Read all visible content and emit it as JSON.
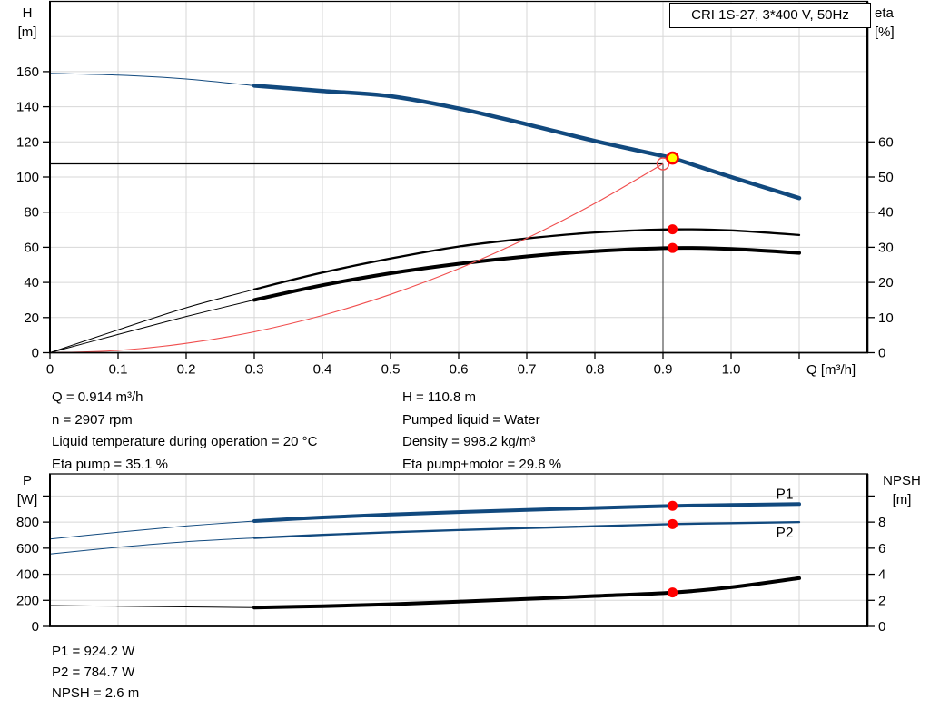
{
  "title_box": {
    "label": "CRI 1S-27, 3*400 V, 50Hz"
  },
  "colors": {
    "blue": "#11497e",
    "black": "#000000",
    "red": "#ff0000",
    "light_red": "#f04e4e",
    "yellow": "#ffff00",
    "grid": "#d7d7d7"
  },
  "axes": {
    "top_left_1": "H",
    "top_left_2": "[m]",
    "top_right_1": "eta",
    "top_right_2": "[%]",
    "x_label": "Q [m³/h]",
    "bot_left_1": "P",
    "bot_left_2": "[W]",
    "bot_right_1": "NPSH",
    "bot_right_2": "[m]"
  },
  "info": {
    "q": "Q = 0.914 m³/h",
    "n": "n = 2907 rpm",
    "temp": "Liquid temperature during operation = 20 °C",
    "eta_pump": "Eta pump = 35.1 %",
    "h": "H = 110.8 m",
    "liquid": "Pumped liquid = Water",
    "density": "Density = 998.2 kg/m³",
    "eta_pm": "Eta pump+motor = 29.8 %",
    "p1": "P1 = 924.2 W",
    "p2": "P2 = 784.7 W",
    "npsh": "NPSH = 2.6 m"
  },
  "chart_data": [
    {
      "type": "line",
      "title": "CRI 1S-27, 3*400 V, 50Hz",
      "x_axis": {
        "label": "Q [m³/h]",
        "min": 0,
        "max": 1.2,
        "grid_step": 0.1,
        "ticks": [
          {
            "v": 0,
            "t": "0"
          },
          {
            "v": 0.1,
            "t": "0.1"
          },
          {
            "v": 0.2,
            "t": "0.2"
          },
          {
            "v": 0.3,
            "t": "0.3"
          },
          {
            "v": 0.4,
            "t": "0.4"
          },
          {
            "v": 0.5,
            "t": "0.5"
          },
          {
            "v": 0.6,
            "t": "0.6"
          },
          {
            "v": 0.7,
            "t": "0.7"
          },
          {
            "v": 0.8,
            "t": "0.8"
          },
          {
            "v": 0.9,
            "t": "0.9"
          },
          {
            "v": 1.0,
            "t": "1.0"
          },
          {
            "v": 1.1,
            "t": ""
          }
        ]
      },
      "y_left": {
        "label": "H [m]",
        "min": 0,
        "max": 200,
        "grid_step": 20,
        "ticks": [
          {
            "v": 0,
            "t": "0"
          },
          {
            "v": 20,
            "t": "20"
          },
          {
            "v": 40,
            "t": "40"
          },
          {
            "v": 60,
            "t": "60"
          },
          {
            "v": 80,
            "t": "80"
          },
          {
            "v": 100,
            "t": "100"
          },
          {
            "v": 120,
            "t": "120"
          },
          {
            "v": 140,
            "t": "140"
          },
          {
            "v": 160,
            "t": "160"
          }
        ]
      },
      "y_right": {
        "label": "eta [%]",
        "min": 0,
        "max": 100,
        "ticks": [
          {
            "v": 0,
            "t": "0"
          },
          {
            "v": 10,
            "t": "10"
          },
          {
            "v": 20,
            "t": "20"
          },
          {
            "v": 30,
            "t": "30"
          },
          {
            "v": 40,
            "t": "40"
          },
          {
            "v": 50,
            "t": "50"
          },
          {
            "v": 60,
            "t": "60"
          }
        ]
      },
      "series": [
        {
          "name": "H pump curve",
          "axis": "left",
          "color": "blue",
          "thin_width": 1,
          "width": 4.5,
          "thick_from": 0.3,
          "points": [
            [
              0,
              159
            ],
            [
              0.1,
              158
            ],
            [
              0.2,
              155.8
            ],
            [
              0.3,
              152
            ],
            [
              0.4,
              149
            ],
            [
              0.5,
              146
            ],
            [
              0.6,
              139
            ],
            [
              0.7,
              130
            ],
            [
              0.8,
              120.5
            ],
            [
              0.9,
              112
            ],
            [
              0.914,
              110.8
            ],
            [
              1.0,
              100
            ],
            [
              1.1,
              88
            ]
          ]
        },
        {
          "name": "Eta pump",
          "axis": "right",
          "color": "black",
          "thin_width": 1,
          "width": 2.3,
          "thick_from": 0.3,
          "points": [
            [
              0,
              0
            ],
            [
              0.1,
              6.5
            ],
            [
              0.2,
              12.8
            ],
            [
              0.3,
              18
            ],
            [
              0.4,
              22.8
            ],
            [
              0.5,
              26.8
            ],
            [
              0.6,
              30.2
            ],
            [
              0.7,
              32.5
            ],
            [
              0.8,
              34.2
            ],
            [
              0.914,
              35.1
            ],
            [
              1.0,
              34.8
            ],
            [
              1.1,
              33.5
            ]
          ]
        },
        {
          "name": "Eta pump plus motor",
          "axis": "right",
          "color": "black",
          "thin_width": 1,
          "width": 4,
          "thick_from": 0.3,
          "points": [
            [
              0,
              0
            ],
            [
              0.1,
              5.2
            ],
            [
              0.2,
              10.3
            ],
            [
              0.3,
              15
            ],
            [
              0.4,
              19.2
            ],
            [
              0.5,
              22.6
            ],
            [
              0.6,
              25.3
            ],
            [
              0.7,
              27.4
            ],
            [
              0.8,
              28.9
            ],
            [
              0.914,
              29.8
            ],
            [
              1.0,
              29.5
            ],
            [
              1.1,
              28.4
            ]
          ]
        },
        {
          "name": "System curve",
          "axis": "left",
          "color": "light_red",
          "thin_width": 1.1,
          "width": 1.1,
          "thick_from": null,
          "points": [
            [
              0,
              0
            ],
            [
              0.1,
              1.3
            ],
            [
              0.2,
              5.3
            ],
            [
              0.3,
              11.9
            ],
            [
              0.4,
              21.2
            ],
            [
              0.5,
              33.2
            ],
            [
              0.6,
              47.8
            ],
            [
              0.7,
              65.1
            ],
            [
              0.8,
              85
            ],
            [
              0.9,
              107.5
            ]
          ]
        }
      ],
      "guides": {
        "h_line": {
          "value": 107.5,
          "to_q": 0.9
        },
        "v_line": {
          "q": 0.9,
          "from_value": 107.5
        }
      },
      "markers": [
        {
          "style": "open-red",
          "axis": "left",
          "q": 0.9,
          "value": 107.5
        },
        {
          "style": "yellow-dot",
          "axis": "left",
          "q": 0.914,
          "value": 110.8
        },
        {
          "style": "red-dot",
          "axis": "right",
          "q": 0.914,
          "value": 35.1
        },
        {
          "style": "red-dot",
          "axis": "right",
          "q": 0.914,
          "value": 29.8
        }
      ],
      "annotations": []
    },
    {
      "type": "line",
      "title": "",
      "x_axis": {
        "label": "",
        "min": 0,
        "max": 1.2,
        "grid_step": 0.1,
        "ticks": []
      },
      "y_left": {
        "label": "P [W]",
        "min": 0,
        "max": 1170,
        "grid_step": 200,
        "ticks": [
          {
            "v": 0,
            "t": "0"
          },
          {
            "v": 200,
            "t": "200"
          },
          {
            "v": 400,
            "t": "400"
          },
          {
            "v": 600,
            "t": "600"
          },
          {
            "v": 800,
            "t": "800"
          },
          {
            "v": 1000,
            "t": ""
          }
        ]
      },
      "y_right": {
        "label": "NPSH [m]",
        "min": 0,
        "max": 11.7,
        "ticks": [
          {
            "v": 0,
            "t": "0"
          },
          {
            "v": 2,
            "t": "2"
          },
          {
            "v": 4,
            "t": "4"
          },
          {
            "v": 6,
            "t": "6"
          },
          {
            "v": 8,
            "t": "8"
          },
          {
            "v": 10,
            "t": ""
          }
        ]
      },
      "series": [
        {
          "name": "P1",
          "axis": "left",
          "color": "blue",
          "thin_width": 1,
          "width": 4,
          "thick_from": 0.3,
          "points": [
            [
              0,
              670
            ],
            [
              0.1,
              722
            ],
            [
              0.2,
              770
            ],
            [
              0.3,
              808
            ],
            [
              0.4,
              836
            ],
            [
              0.5,
              858
            ],
            [
              0.6,
              877
            ],
            [
              0.7,
              893
            ],
            [
              0.8,
              908
            ],
            [
              0.914,
              924.2
            ],
            [
              1.0,
              931
            ],
            [
              1.1,
              938
            ]
          ]
        },
        {
          "name": "P2",
          "axis": "left",
          "color": "blue",
          "thin_width": 1,
          "width": 2.3,
          "thick_from": 0.3,
          "points": [
            [
              0,
              555
            ],
            [
              0.1,
              607
            ],
            [
              0.2,
              650
            ],
            [
              0.3,
              678
            ],
            [
              0.4,
              702
            ],
            [
              0.5,
              722
            ],
            [
              0.6,
              739
            ],
            [
              0.7,
              754
            ],
            [
              0.8,
              768
            ],
            [
              0.914,
              784.7
            ],
            [
              1.0,
              792
            ],
            [
              1.1,
              800
            ]
          ]
        },
        {
          "name": "NPSH",
          "axis": "right",
          "color": "black",
          "thin_width": 1,
          "width": 4,
          "thick_from": 0.3,
          "points": [
            [
              0,
              1.6
            ],
            [
              0.1,
              1.55
            ],
            [
              0.2,
              1.5
            ],
            [
              0.3,
              1.45
            ],
            [
              0.4,
              1.55
            ],
            [
              0.5,
              1.7
            ],
            [
              0.6,
              1.9
            ],
            [
              0.7,
              2.1
            ],
            [
              0.8,
              2.33
            ],
            [
              0.914,
              2.6
            ],
            [
              1.0,
              3.0
            ],
            [
              1.1,
              3.7
            ]
          ]
        }
      ],
      "guides": null,
      "markers": [
        {
          "style": "red-dot",
          "axis": "left",
          "q": 0.914,
          "value": 924.2
        },
        {
          "style": "red-dot",
          "axis": "left",
          "q": 0.914,
          "value": 784.7
        },
        {
          "style": "red-dot",
          "axis": "right",
          "q": 0.914,
          "value": 2.6
        }
      ],
      "annotations": [
        {
          "text": "P1",
          "axis": "left",
          "q": 1.066,
          "value": 1015,
          "color": "blue"
        },
        {
          "text": "P2",
          "axis": "left",
          "q": 1.066,
          "value": 716,
          "color": "blue"
        }
      ]
    }
  ]
}
